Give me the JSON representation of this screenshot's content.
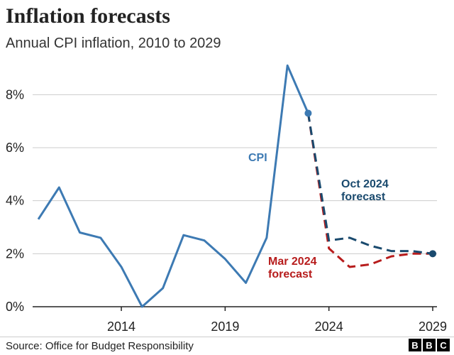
{
  "header": {
    "title": "Inflation forecasts",
    "subtitle": "Annual CPI inflation, 2010 to 2029"
  },
  "footer": {
    "source": "Source: Office for Budget Responsibility",
    "logo_letters": [
      "B",
      "B",
      "C"
    ]
  },
  "colors": {
    "cpi": "#3d7ab3",
    "oct_2024_forecast": "#1a4a6e",
    "mar_2024_forecast": "#b71c1c",
    "grid": "#cccccc",
    "axis": "#222222"
  },
  "chart_data": {
    "type": "line",
    "title": "Inflation forecasts",
    "subtitle": "Annual CPI inflation, 2010 to 2029",
    "xlabel": "",
    "ylabel": "",
    "xlim": [
      2010,
      2029
    ],
    "ylim": [
      0,
      9
    ],
    "x_ticks": [
      2014,
      2019,
      2024,
      2029
    ],
    "x_tick_labels": [
      "2014",
      "2019",
      "2024",
      "2029"
    ],
    "y_ticks": [
      0,
      2,
      4,
      6,
      8
    ],
    "y_tick_labels": [
      "0%",
      "2%",
      "4%",
      "6%",
      "8%"
    ],
    "grid": "horizontal",
    "series": [
      {
        "name": "CPI",
        "style": "solid",
        "x": [
          2010,
          2011,
          2012,
          2013,
          2014,
          2015,
          2016,
          2017,
          2018,
          2019,
          2020,
          2021,
          2022,
          2023
        ],
        "y": [
          3.3,
          4.5,
          2.8,
          2.6,
          1.5,
          0.0,
          0.7,
          2.7,
          2.5,
          1.8,
          0.9,
          2.6,
          9.1,
          7.3
        ]
      },
      {
        "name": "Mar 2024 forecast",
        "style": "dashed",
        "x": [
          2023,
          2024,
          2025,
          2026,
          2027,
          2028,
          2029
        ],
        "y": [
          7.3,
          2.2,
          1.5,
          1.6,
          1.9,
          2.0,
          2.0
        ]
      },
      {
        "name": "Oct 2024 forecast",
        "style": "dashed",
        "x": [
          2023,
          2024,
          2025,
          2026,
          2027,
          2028,
          2029
        ],
        "y": [
          7.3,
          2.5,
          2.6,
          2.3,
          2.1,
          2.1,
          2.0
        ]
      }
    ],
    "annotations": [
      {
        "series": "CPI",
        "lines": [
          "CPI"
        ]
      },
      {
        "series": "Oct 2024 forecast",
        "lines": [
          "Oct 2024",
          "forecast"
        ]
      },
      {
        "series": "Mar 2024 forecast",
        "lines": [
          "Mar 2024",
          "forecast"
        ]
      }
    ]
  }
}
